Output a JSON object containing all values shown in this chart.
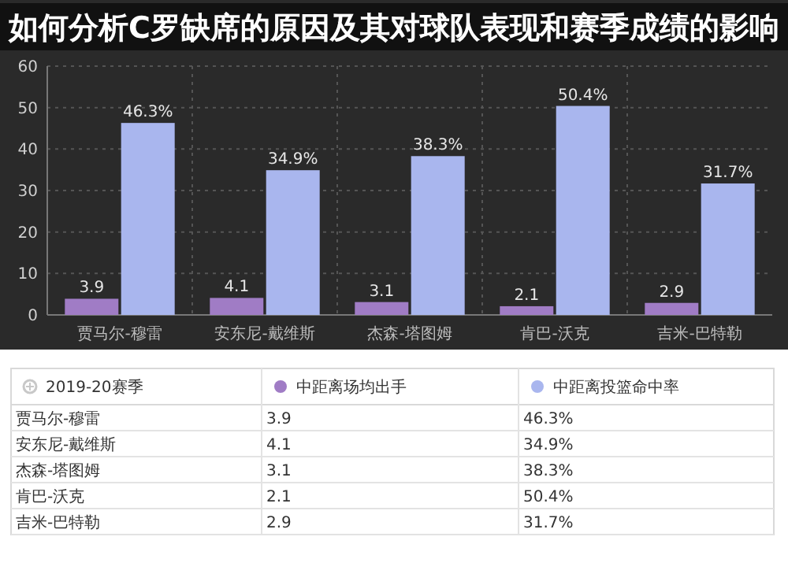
{
  "chart_data": {
    "type": "bar",
    "title": "如何分析C罗缺席的原因及其对球队表现和赛季成绩的影响",
    "legend_title": "2019-20赛季",
    "categories": [
      "贾马尔-穆雷",
      "安东尼-戴维斯",
      "杰森-塔图姆",
      "肯巴-沃克",
      "吉米-巴特勒"
    ],
    "series": [
      {
        "name": "中距离场均出手",
        "color": "#a07cc5",
        "values": [
          3.9,
          4.1,
          3.1,
          2.1,
          2.9
        ],
        "value_labels": [
          "3.9",
          "4.1",
          "3.1",
          "2.1",
          "2.9"
        ]
      },
      {
        "name": "中距离投篮命中率",
        "color": "#a9b6ee",
        "values": [
          46.3,
          34.9,
          38.3,
          50.4,
          31.7
        ],
        "value_labels": [
          "46.3%",
          "34.9%",
          "38.3%",
          "50.4%",
          "31.7%"
        ]
      }
    ],
    "ylim": [
      0,
      60
    ],
    "yticks": [
      0,
      10,
      20,
      30,
      40,
      50,
      60
    ],
    "grid": true,
    "legend": "bottom"
  }
}
